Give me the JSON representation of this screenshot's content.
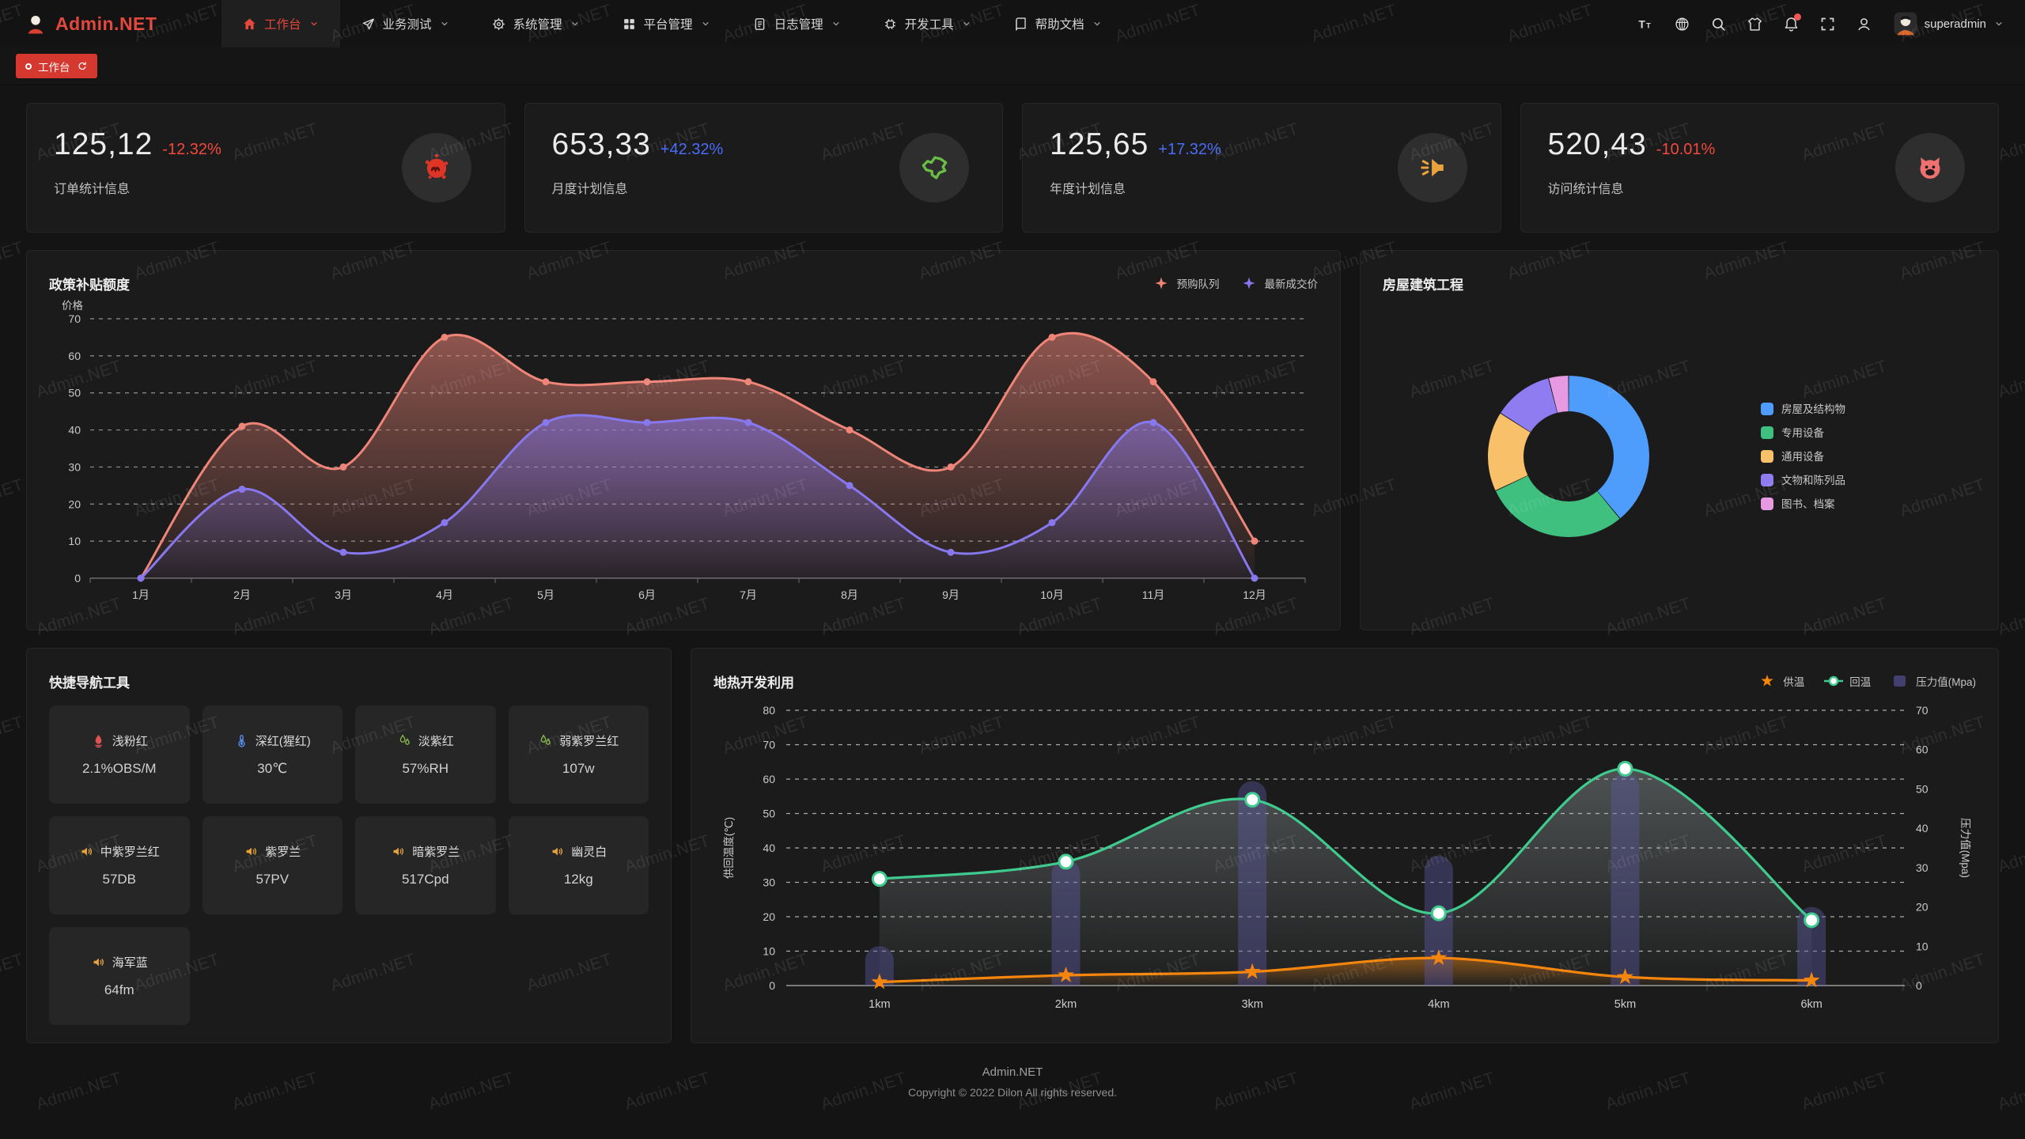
{
  "watermark": {
    "text": "Admin.NET"
  },
  "navbar": {
    "logo_text": "Admin.NET",
    "menu": [
      {
        "label": "工作台",
        "icon": "home",
        "active": true
      },
      {
        "label": "业务测试",
        "icon": "send",
        "active": false
      },
      {
        "label": "系统管理",
        "icon": "gear",
        "active": false
      },
      {
        "label": "平台管理",
        "icon": "grid",
        "active": false
      },
      {
        "label": "日志管理",
        "icon": "doc",
        "active": false
      },
      {
        "label": "开发工具",
        "icon": "chip",
        "active": false
      },
      {
        "label": "帮助文档",
        "icon": "book",
        "active": false
      }
    ],
    "right_icons": [
      {
        "name": "font-size",
        "icon": "font"
      },
      {
        "name": "language",
        "icon": "lang"
      },
      {
        "name": "search",
        "icon": "search"
      },
      {
        "name": "theme-shirt",
        "icon": "shirt"
      },
      {
        "name": "notifications",
        "icon": "bell",
        "badge": true
      },
      {
        "name": "fullscreen",
        "icon": "fullscreen"
      },
      {
        "name": "profile",
        "icon": "user"
      }
    ],
    "username": "superadmin"
  },
  "tabs": [
    {
      "label": "工作台",
      "active": true
    }
  ],
  "stats": [
    {
      "value": "125,12",
      "delta": "-12.32%",
      "trend": "down",
      "label": "订单统计信息",
      "icon": "splat",
      "icon_color": "#df3527"
    },
    {
      "value": "653,33",
      "delta": "+42.32%",
      "trend": "up",
      "label": "月度计划信息",
      "icon": "chinamap",
      "icon_color": "#6abe45"
    },
    {
      "value": "125,65",
      "delta": "+17.32%",
      "trend": "up",
      "label": "年度计划信息",
      "icon": "horn",
      "icon_color": "#e8a33d"
    },
    {
      "value": "520,43",
      "delta": "-10.01%",
      "trend": "down",
      "label": "访问统计信息",
      "icon": "cat",
      "icon_color": "#ee7170"
    }
  ],
  "chart_data": [
    {
      "id": "subsidy",
      "type": "line",
      "title": "政策补贴额度",
      "ylabel": "价格",
      "categories": [
        "1月",
        "2月",
        "3月",
        "4月",
        "5月",
        "6月",
        "7月",
        "8月",
        "9月",
        "10月",
        "11月",
        "12月"
      ],
      "series": [
        {
          "name": "预购队列",
          "color": "#ee8578",
          "values": [
            0,
            41,
            30,
            65,
            53,
            53,
            53,
            40,
            30,
            65,
            53,
            10
          ]
        },
        {
          "name": "最新成交价",
          "color": "#8778f0",
          "values": [
            0,
            24,
            7,
            15,
            42,
            42,
            42,
            25,
            7,
            15,
            42,
            0
          ]
        }
      ],
      "ylim": [
        0,
        70
      ],
      "ytick": 10,
      "grid": "dashed",
      "legend_position": "top-right"
    },
    {
      "id": "building",
      "type": "pie",
      "title": "房屋建筑工程",
      "donut": true,
      "labels": [
        "房屋及结构物",
        "专用设备",
        "通用设备",
        "文物和陈列品",
        "图书、档案"
      ],
      "values": [
        39,
        29,
        16,
        12,
        4
      ],
      "colors": [
        "#4e9cfb",
        "#3fc07f",
        "#f9c06a",
        "#8e7cf0",
        "#e79ae1"
      ],
      "legend_position": "right"
    },
    {
      "id": "geothermal",
      "type": "combo",
      "title": "地热开发利用",
      "categories": [
        "1km",
        "2km",
        "3km",
        "4km",
        "5km",
        "6km"
      ],
      "ylabel_left": "供回温度(℃)",
      "ylabel_right": "压力值(Mpa)",
      "ylim_left": [
        0,
        80
      ],
      "ylim_right": [
        0,
        70
      ],
      "ytick": 10,
      "grid": "dashed",
      "series": [
        {
          "name": "供温",
          "type": "line",
          "axis": "left",
          "color": "#f5860d",
          "marker": "star",
          "values": [
            1,
            3,
            4,
            8,
            2.5,
            1.5
          ]
        },
        {
          "name": "回温",
          "type": "line",
          "axis": "left",
          "color": "#3fcb8e",
          "marker": "circle",
          "values": [
            31,
            36,
            54,
            21,
            63,
            19
          ]
        },
        {
          "name": "压力值(Mpa)",
          "type": "bar",
          "axis": "right",
          "color": "#504c8c",
          "values": [
            10,
            32,
            52,
            33,
            54,
            20
          ]
        }
      ]
    }
  ],
  "quicknav": {
    "title": "快捷导航工具",
    "items": [
      {
        "name": "浅粉红",
        "value": "2.1%OBS/M",
        "icon": "fire",
        "color": "#e05252"
      },
      {
        "name": "深红(猩红)",
        "value": "30℃",
        "icon": "thermometer",
        "color": "#5b8def"
      },
      {
        "name": "淡紫红",
        "value": "57%RH",
        "icon": "drops",
        "color": "#8bc34a"
      },
      {
        "name": "弱紫罗兰红",
        "value": "107w",
        "icon": "drops",
        "color": "#8bc34a"
      },
      {
        "name": "中紫罗兰红",
        "value": "57DB",
        "icon": "speaker",
        "color": "#e6a23c"
      },
      {
        "name": "紫罗兰",
        "value": "57PV",
        "icon": "speaker",
        "color": "#e6a23c"
      },
      {
        "name": "暗紫罗兰",
        "value": "517Cpd",
        "icon": "speaker",
        "color": "#e6a23c"
      },
      {
        "name": "幽灵白",
        "value": "12kg",
        "icon": "speaker",
        "color": "#e6a23c"
      },
      {
        "name": "海军蓝",
        "value": "64fm",
        "icon": "speaker",
        "color": "#e6a23c"
      }
    ]
  },
  "footer": {
    "line1": "Admin.NET",
    "line2": "Copyright © 2022 Dilon All rights reserved."
  }
}
